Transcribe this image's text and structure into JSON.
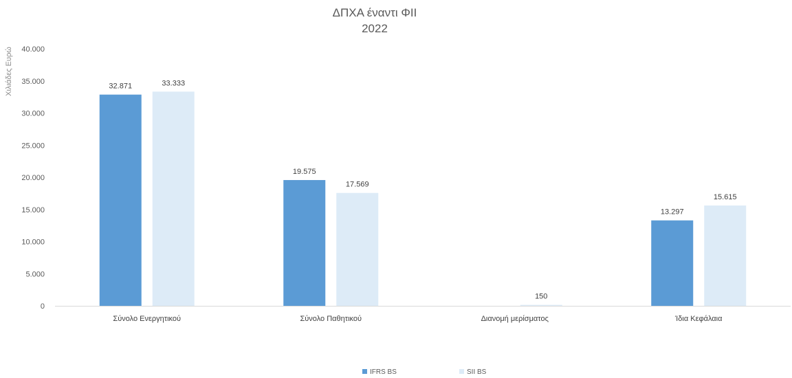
{
  "chart_data": {
    "type": "bar",
    "title": "ΔΠΧΑ έναντι ΦΙΙ",
    "subtitle": "2022",
    "xlabel": "",
    "ylabel": "Χιλιάδες Ευρώ",
    "ylim": [
      0,
      40000
    ],
    "yticks": [
      0,
      5000,
      10000,
      15000,
      20000,
      25000,
      30000,
      35000,
      40000
    ],
    "ytick_labels": [
      "0",
      "5.000",
      "10.000",
      "15.000",
      "20.000",
      "25.000",
      "30.000",
      "35.000",
      "40.000"
    ],
    "categories": [
      "Σύνολο Ενεργητικού",
      "Σύνολο Παθητικού",
      "Διανομή μερίσματος",
      "Ίδια Κεφάλαια"
    ],
    "series": [
      {
        "name": "IFRS BS",
        "color": "#5b9bd5",
        "values": [
          32871,
          19575,
          null,
          13297
        ],
        "labels": [
          "32.871",
          "19.575",
          "",
          "13.297"
        ]
      },
      {
        "name": "SII BS",
        "color": "#ddebf7",
        "values": [
          33333,
          17569,
          150,
          15615
        ],
        "labels": [
          "33.333",
          "17.569",
          "150",
          "15.615"
        ]
      }
    ],
    "grid": false,
    "legend_position": "bottom"
  }
}
